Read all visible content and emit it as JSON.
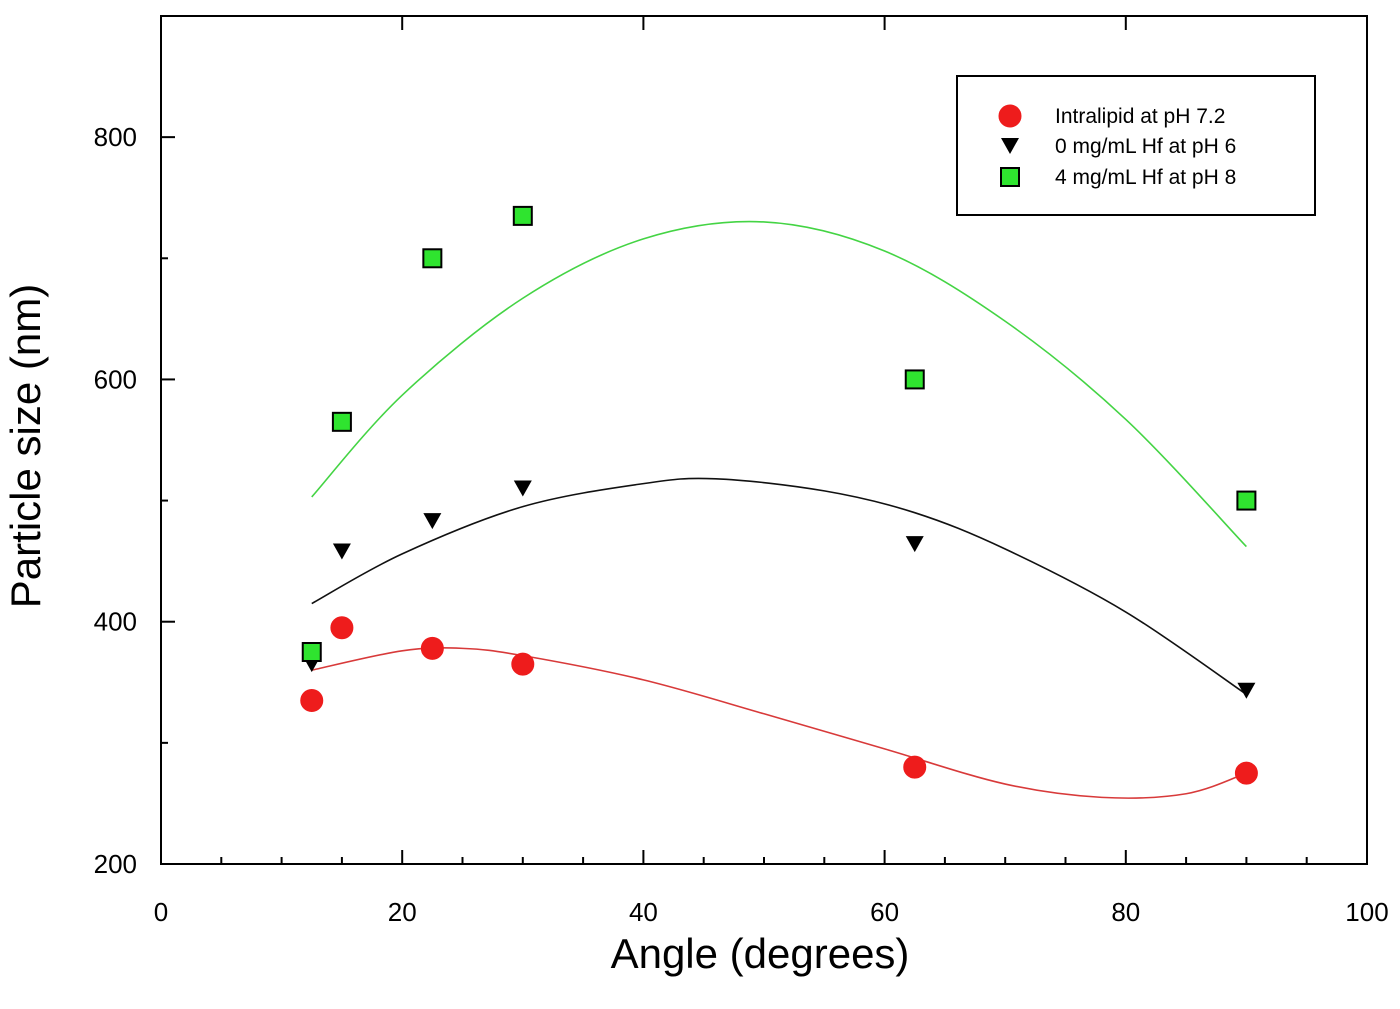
{
  "chart_data": {
    "type": "scatter",
    "title": "",
    "xlabel": "Angle (degrees)",
    "ylabel": "Particle size (nm)",
    "xlim": [
      0,
      100
    ],
    "ylim": [
      200,
      900
    ],
    "xticks": [
      0,
      20,
      40,
      60,
      80,
      100
    ],
    "yticks": [
      200,
      400,
      600,
      800
    ],
    "x_tick_labels": [
      "0",
      "20",
      "40",
      "60",
      "80",
      "100"
    ],
    "y_tick_labels": [
      "200",
      "400",
      "600",
      "800"
    ],
    "grid": false,
    "legend_position": "top-right",
    "series": [
      {
        "name": "Intralipid at pH 7.2",
        "marker": "circle",
        "color": "#ee1c1c",
        "fit_color": "#d83a3a",
        "x": [
          12.5,
          15,
          22.5,
          30,
          62.5,
          90
        ],
        "y": [
          335,
          395,
          378,
          365,
          280,
          275
        ],
        "fit_x": [
          12.5,
          20,
          25,
          30,
          40,
          50,
          60,
          70,
          78,
          85,
          90
        ],
        "fit_y": [
          360,
          376,
          378,
          372,
          352,
          324,
          295,
          266,
          255,
          258,
          275
        ]
      },
      {
        "name": "0 mg/mL Hf at pH 6",
        "marker": "triangle-down",
        "color": "#000000",
        "fit_color": "#111111",
        "x": [
          12.5,
          15,
          22.5,
          30,
          62.5,
          90
        ],
        "y": [
          365,
          458,
          483,
          510,
          464,
          343
        ],
        "fit_x": [
          12.5,
          20,
          30,
          40,
          46,
          55,
          62.5,
          70,
          80,
          90
        ],
        "fit_y": [
          415,
          456,
          495,
          514,
          518,
          508,
          490,
          460,
          408,
          340
        ],
        "fit_extends_beyond": false
      },
      {
        "name": "4 mg/mL Hf at pH 8",
        "marker": "square",
        "color": "#2fe42f",
        "fit_color": "#44d444",
        "x": [
          12.5,
          15,
          22.5,
          30,
          62.5,
          90
        ],
        "y": [
          375,
          565,
          700,
          735,
          600,
          500
        ],
        "fit_x": [
          12.5,
          20,
          30,
          40,
          50,
          60,
          70,
          80,
          90
        ],
        "fit_y": [
          503,
          587,
          667,
          716,
          730,
          706,
          648,
          567,
          462
        ]
      }
    ]
  }
}
